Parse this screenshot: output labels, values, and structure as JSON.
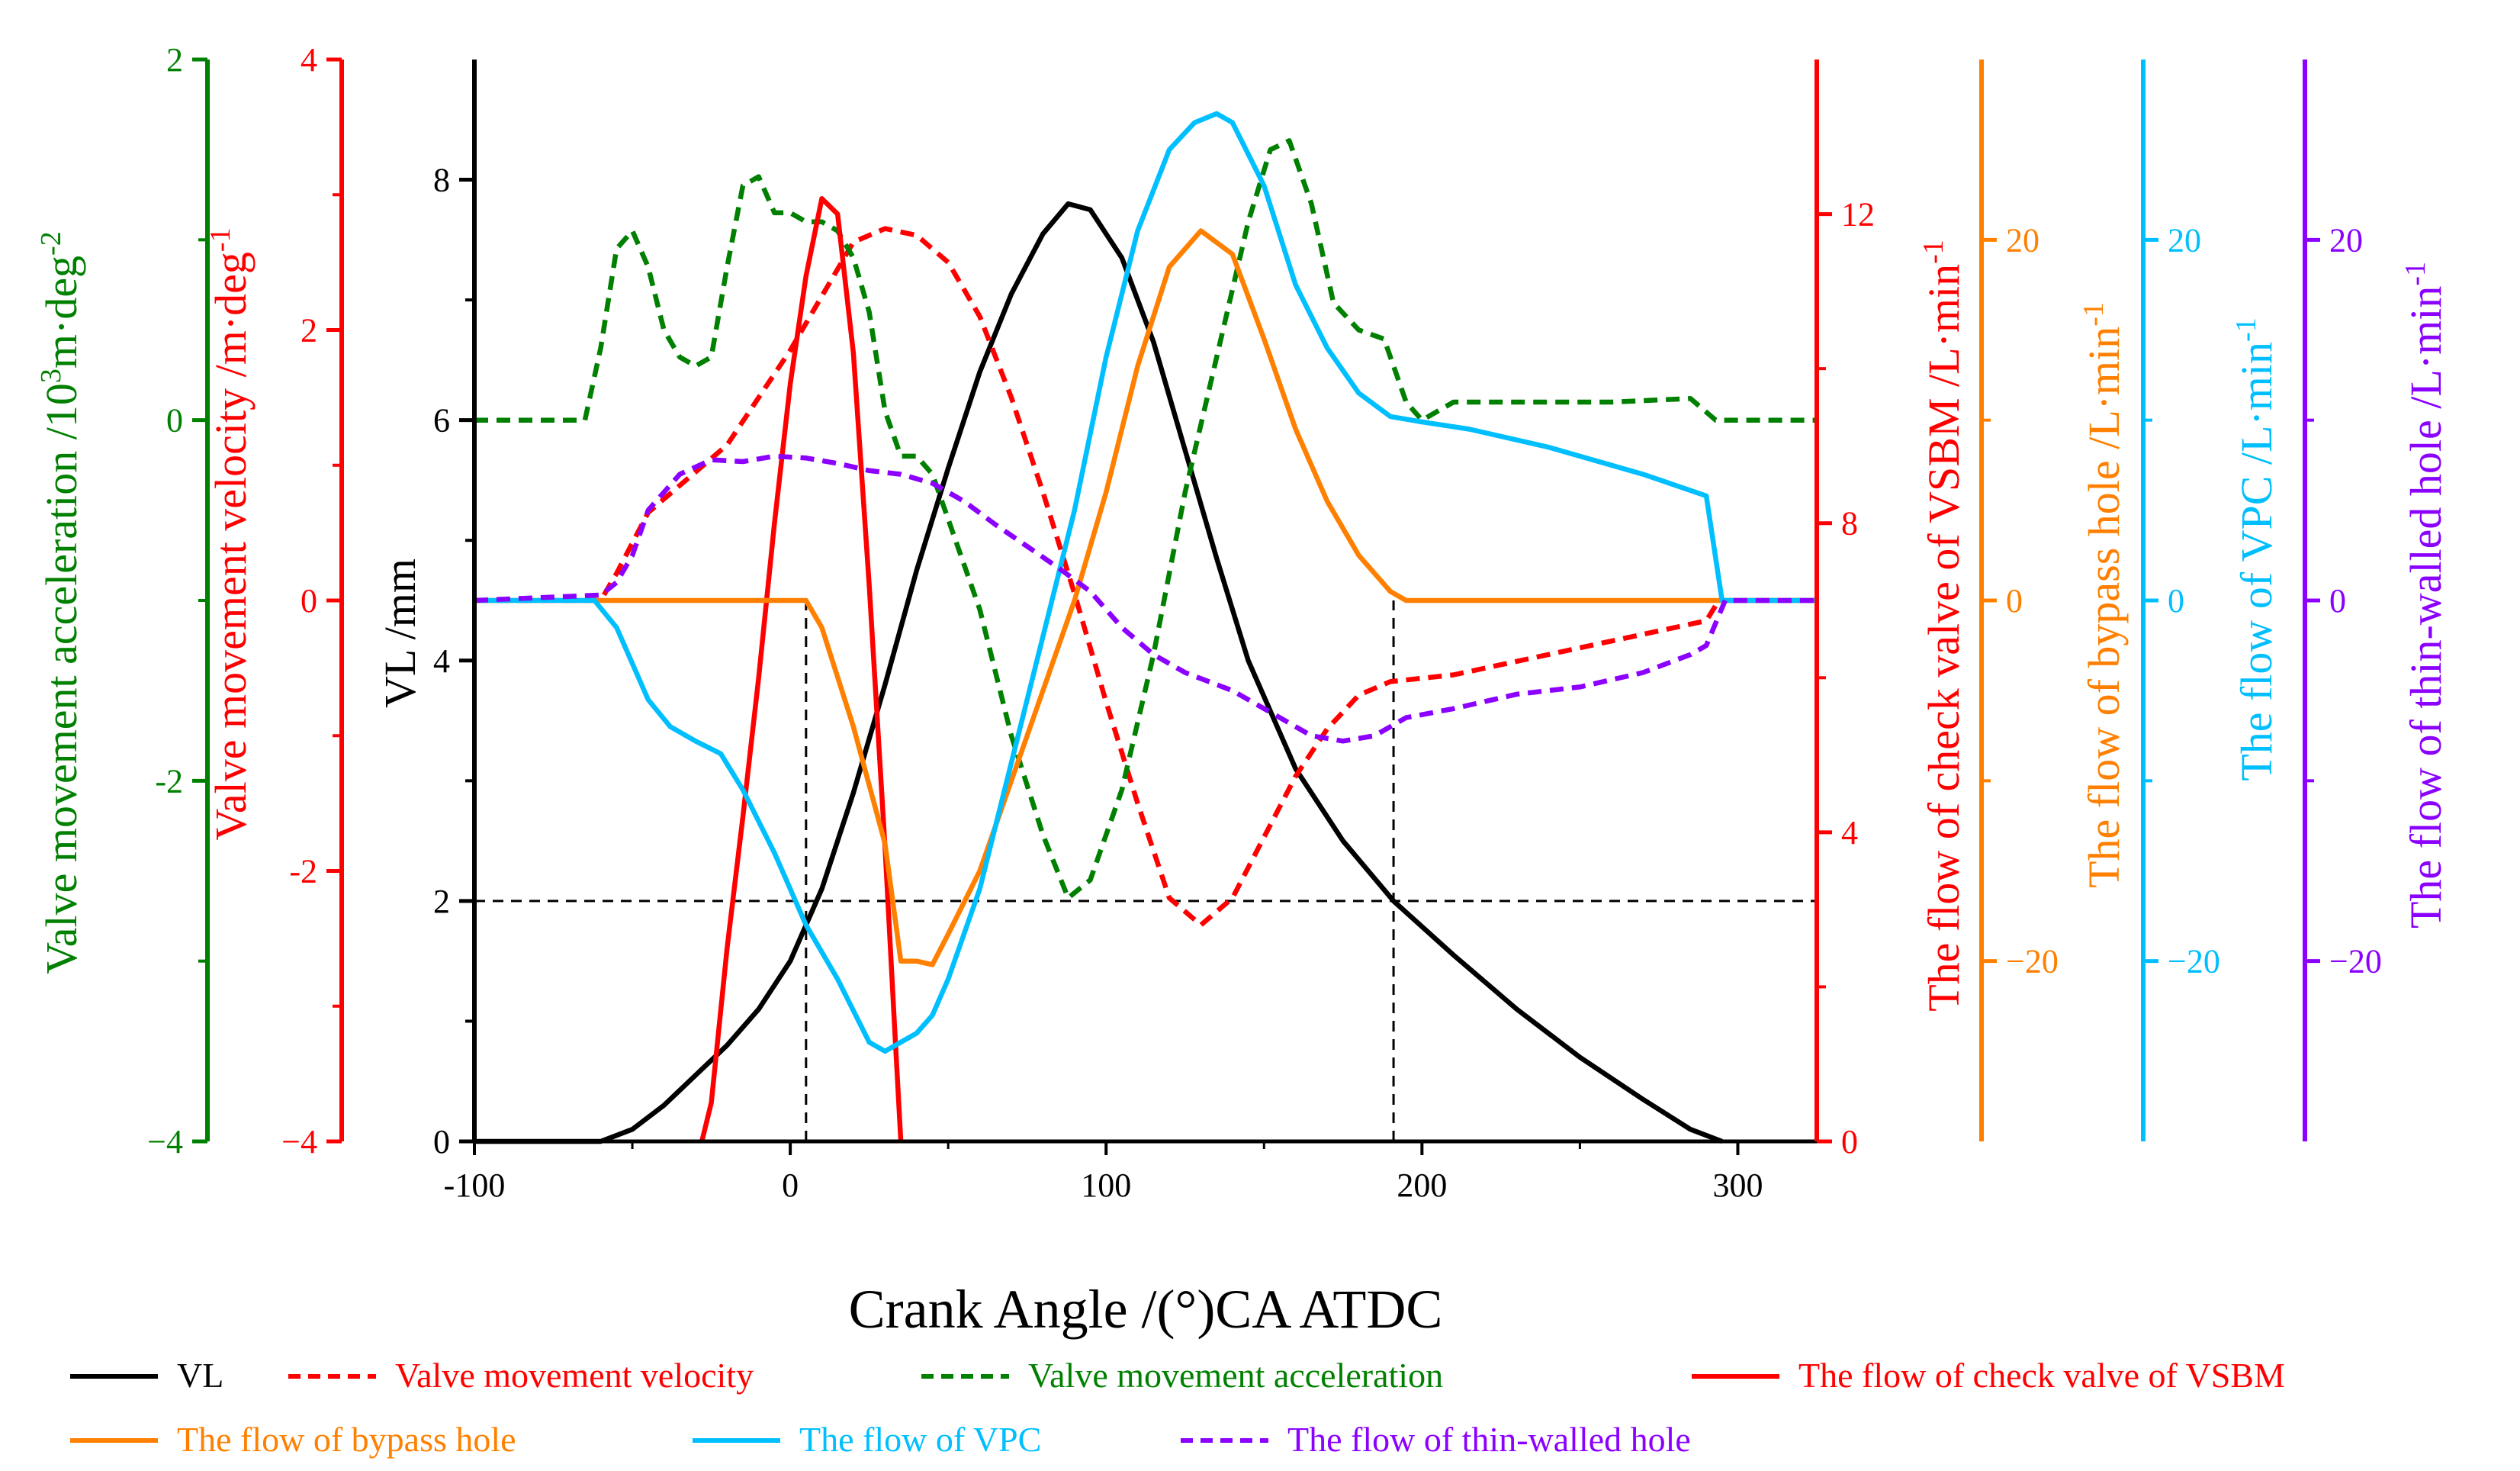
{
  "chart_data": {
    "type": "line",
    "xlabel": "Crank Angle /(°)CA ATDC",
    "xlim": [
      -100,
      325
    ],
    "x_ticks": [
      "-100",
      "0",
      "100",
      "200",
      "300"
    ],
    "grid": false,
    "legend_position": "bottom",
    "axes": [
      {
        "id": "acc",
        "label": "Valve movement acceleration /10³m·deg⁻²",
        "label_parts": [
          "Valve movement acceleration /10",
          "3",
          "m·deg",
          "-2"
        ],
        "color": "#008000",
        "ylim": [
          -4,
          2
        ],
        "ticks": [
          "2",
          "0",
          "-2",
          "−4"
        ]
      },
      {
        "id": "vel",
        "label": "Valve movement velocity /m·deg⁻¹",
        "label_parts": [
          "Valve movement velocity /m·deg",
          "-1"
        ],
        "color": "#ff0000",
        "ylim": [
          -4,
          4
        ],
        "ticks": [
          "4",
          "2",
          "0",
          "-2",
          "−4"
        ]
      },
      {
        "id": "vl",
        "label": "VL /mm",
        "label_parts": [
          "VL /mm"
        ],
        "color": "#000000",
        "ylim": [
          0,
          9
        ],
        "ticks": [
          "0",
          "2",
          "4",
          "6",
          "8"
        ]
      },
      {
        "id": "check",
        "label": "The flow of check valve of VSBM /L·min⁻¹",
        "label_parts": [
          "The flow of check valve of VSBM /L·min",
          "-1"
        ],
        "color": "#ff0000",
        "ylim": [
          0,
          14
        ],
        "ticks": [
          "0",
          "4",
          "8",
          "12"
        ]
      },
      {
        "id": "bypass",
        "label": "The flow of bypass hole /L·min⁻¹",
        "label_parts": [
          "The flow of bypass hole /L·min",
          "-1"
        ],
        "color": "#ff8000",
        "ylim": [
          -30,
          30
        ],
        "ticks": [
          "−20",
          "0",
          "20"
        ]
      },
      {
        "id": "vpc",
        "label": "The flow of VPC /L·min⁻¹",
        "label_parts": [
          "The flow of VPC /L·min",
          "-1"
        ],
        "color": "#00bfff",
        "ylim": [
          -30,
          30
        ],
        "ticks": [
          "−20",
          "0",
          "20"
        ]
      },
      {
        "id": "thin",
        "label": "The flow of thin-walled hole /L·min⁻¹",
        "label_parts": [
          "The flow of thin-walled hole /L·min",
          "-1"
        ],
        "color": "#8b00ff",
        "ylim": [
          -30,
          30
        ],
        "ticks": [
          "−20",
          "0",
          "20"
        ]
      }
    ],
    "reference_lines": [
      {
        "orientation": "horizontal",
        "axis": "vl",
        "value": 2,
        "from_x": -100,
        "to_x": 325
      },
      {
        "orientation": "vertical",
        "x": 5,
        "from_vl": 0,
        "to_vl": 4.5
      },
      {
        "orientation": "vertical",
        "x": 191,
        "from_vl": 0,
        "to_vl": 4.5
      }
    ],
    "series": [
      {
        "name": "VL",
        "axis": "vl",
        "color": "#000000",
        "dash": "solid",
        "points": [
          [
            -100,
            0
          ],
          [
            -60,
            0
          ],
          [
            -50,
            0.1
          ],
          [
            -40,
            0.3
          ],
          [
            -30,
            0.55
          ],
          [
            -20,
            0.8
          ],
          [
            -10,
            1.1
          ],
          [
            0,
            1.5
          ],
          [
            10,
            2.1
          ],
          [
            20,
            2.9
          ],
          [
            30,
            3.8
          ],
          [
            40,
            4.75
          ],
          [
            50,
            5.6
          ],
          [
            60,
            6.4
          ],
          [
            70,
            7.05
          ],
          [
            80,
            7.55
          ],
          [
            88,
            7.8
          ],
          [
            95,
            7.75
          ],
          [
            105,
            7.35
          ],
          [
            115,
            6.65
          ],
          [
            125,
            5.75
          ],
          [
            135,
            4.85
          ],
          [
            145,
            4.0
          ],
          [
            160,
            3.1
          ],
          [
            175,
            2.5
          ],
          [
            191,
            2.0
          ],
          [
            210,
            1.55
          ],
          [
            230,
            1.1
          ],
          [
            250,
            0.7
          ],
          [
            270,
            0.35
          ],
          [
            285,
            0.1
          ],
          [
            295,
            0
          ]
        ]
      },
      {
        "name": "Valve movement velocity",
        "axis": "vel",
        "color": "#ff0000",
        "dash": "dashed",
        "points": [
          [
            -100,
            0
          ],
          [
            -60,
            0
          ],
          [
            -55,
            0.2
          ],
          [
            -45,
            0.65
          ],
          [
            -30,
            0.95
          ],
          [
            -20,
            1.15
          ],
          [
            -10,
            1.5
          ],
          [
            0,
            1.85
          ],
          [
            10,
            2.25
          ],
          [
            20,
            2.65
          ],
          [
            30,
            2.75
          ],
          [
            40,
            2.7
          ],
          [
            50,
            2.5
          ],
          [
            60,
            2.1
          ],
          [
            70,
            1.5
          ],
          [
            80,
            0.8
          ],
          [
            90,
            0.05
          ],
          [
            100,
            -0.75
          ],
          [
            110,
            -1.5
          ],
          [
            120,
            -2.2
          ],
          [
            130,
            -2.4
          ],
          [
            140,
            -2.2
          ],
          [
            150,
            -1.75
          ],
          [
            160,
            -1.3
          ],
          [
            170,
            -0.95
          ],
          [
            180,
            -0.7
          ],
          [
            190,
            -0.6
          ],
          [
            210,
            -0.55
          ],
          [
            230,
            -0.45
          ],
          [
            260,
            -0.3
          ],
          [
            290,
            -0.15
          ],
          [
            294,
            0
          ],
          [
            325,
            0
          ]
        ]
      },
      {
        "name": "Valve movement acceleration",
        "axis": "acc",
        "color": "#008000",
        "dash": "dashed",
        "points": [
          [
            -100,
            0
          ],
          [
            -65,
            0
          ],
          [
            -60,
            0.4
          ],
          [
            -55,
            0.95
          ],
          [
            -50,
            1.05
          ],
          [
            -45,
            0.85
          ],
          [
            -40,
            0.5
          ],
          [
            -35,
            0.35
          ],
          [
            -30,
            0.3
          ],
          [
            -25,
            0.35
          ],
          [
            -20,
            0.85
          ],
          [
            -15,
            1.3
          ],
          [
            -10,
            1.35
          ],
          [
            -5,
            1.15
          ],
          [
            0,
            1.15
          ],
          [
            5,
            1.1
          ],
          [
            10,
            1.1
          ],
          [
            15,
            1.05
          ],
          [
            20,
            0.9
          ],
          [
            25,
            0.6
          ],
          [
            30,
            0.05
          ],
          [
            35,
            -0.2
          ],
          [
            40,
            -0.2
          ],
          [
            45,
            -0.3
          ],
          [
            50,
            -0.55
          ],
          [
            60,
            -1.05
          ],
          [
            70,
            -1.75
          ],
          [
            80,
            -2.3
          ],
          [
            88,
            -2.65
          ],
          [
            95,
            -2.55
          ],
          [
            105,
            -2.05
          ],
          [
            115,
            -1.3
          ],
          [
            125,
            -0.4
          ],
          [
            135,
            0.35
          ],
          [
            145,
            1.1
          ],
          [
            152,
            1.5
          ],
          [
            158,
            1.55
          ],
          [
            165,
            1.2
          ],
          [
            172,
            0.65
          ],
          [
            180,
            0.5
          ],
          [
            188,
            0.45
          ],
          [
            195,
            0.1
          ],
          [
            200,
            0
          ],
          [
            210,
            0.1
          ],
          [
            230,
            0.1
          ],
          [
            260,
            0.1
          ],
          [
            285,
            0.12
          ],
          [
            293,
            0
          ],
          [
            325,
            0
          ]
        ]
      },
      {
        "name": "The flow of check valve of VSBM",
        "axis": "check",
        "color": "#ff0000",
        "dash": "solid",
        "points": [
          [
            -28,
            0
          ],
          [
            -25,
            0.5
          ],
          [
            -20,
            2.5
          ],
          [
            -15,
            4.2
          ],
          [
            -10,
            6.0
          ],
          [
            -5,
            8.0
          ],
          [
            0,
            9.8
          ],
          [
            5,
            11.2
          ],
          [
            10,
            12.2
          ],
          [
            15,
            12.0
          ],
          [
            20,
            10.2
          ],
          [
            25,
            7.2
          ],
          [
            30,
            3.8
          ],
          [
            33,
            1.5
          ],
          [
            35,
            0
          ]
        ]
      },
      {
        "name": "The flow of bypass hole",
        "axis": "bypass",
        "color": "#ff8000",
        "dash": "solid",
        "points": [
          [
            -100,
            0
          ],
          [
            5,
            0
          ],
          [
            10,
            -1.5
          ],
          [
            20,
            -7.0
          ],
          [
            30,
            -13.5
          ],
          [
            35,
            -20.0
          ],
          [
            40,
            -20.0
          ],
          [
            45,
            -20.2
          ],
          [
            50,
            -18.5
          ],
          [
            60,
            -15.0
          ],
          [
            70,
            -10.0
          ],
          [
            80,
            -5.0
          ],
          [
            90,
            0
          ],
          [
            100,
            6.0
          ],
          [
            110,
            13.0
          ],
          [
            120,
            18.5
          ],
          [
            130,
            20.5
          ],
          [
            140,
            19.2
          ],
          [
            150,
            14.5
          ],
          [
            160,
            9.5
          ],
          [
            170,
            5.5
          ],
          [
            180,
            2.5
          ],
          [
            190,
            0.5
          ],
          [
            195,
            0
          ],
          [
            325,
            0
          ]
        ]
      },
      {
        "name": "The flow of VPC",
        "axis": "vpc",
        "color": "#00bfff",
        "dash": "solid",
        "points": [
          [
            -100,
            0
          ],
          [
            -62,
            0
          ],
          [
            -55,
            -1.5
          ],
          [
            -50,
            -3.5
          ],
          [
            -45,
            -5.5
          ],
          [
            -38,
            -7.0
          ],
          [
            -30,
            -7.8
          ],
          [
            -22,
            -8.5
          ],
          [
            -15,
            -10.5
          ],
          [
            -5,
            -14.0
          ],
          [
            5,
            -18.0
          ],
          [
            15,
            -21.0
          ],
          [
            25,
            -24.5
          ],
          [
            30,
            -25.0
          ],
          [
            35,
            -24.5
          ],
          [
            40,
            -24.0
          ],
          [
            45,
            -23.0
          ],
          [
            50,
            -21.0
          ],
          [
            60,
            -16.0
          ],
          [
            70,
            -9.0
          ],
          [
            80,
            -2.0
          ],
          [
            90,
            5.0
          ],
          [
            100,
            13.5
          ],
          [
            110,
            20.5
          ],
          [
            120,
            25.0
          ],
          [
            128,
            26.5
          ],
          [
            135,
            27.0
          ],
          [
            140,
            26.5
          ],
          [
            150,
            23.0
          ],
          [
            160,
            17.5
          ],
          [
            170,
            14.0
          ],
          [
            180,
            11.5
          ],
          [
            190,
            10.2
          ],
          [
            200,
            9.9
          ],
          [
            215,
            9.5
          ],
          [
            240,
            8.5
          ],
          [
            270,
            7.0
          ],
          [
            290,
            5.8
          ],
          [
            295,
            0
          ],
          [
            325,
            0
          ]
        ]
      },
      {
        "name": "The flow of thin-walled hole",
        "axis": "thin",
        "color": "#8b00ff",
        "dash": "dashed",
        "points": [
          [
            -100,
            0
          ],
          [
            -60,
            0.3
          ],
          [
            -55,
            1.0
          ],
          [
            -50,
            2.5
          ],
          [
            -45,
            5.0
          ],
          [
            -35,
            7.0
          ],
          [
            -25,
            7.8
          ],
          [
            -15,
            7.7
          ],
          [
            -5,
            8.0
          ],
          [
            5,
            7.9
          ],
          [
            15,
            7.6
          ],
          [
            25,
            7.2
          ],
          [
            35,
            7.0
          ],
          [
            45,
            6.5
          ],
          [
            55,
            5.5
          ],
          [
            65,
            4.2
          ],
          [
            75,
            3.0
          ],
          [
            85,
            1.8
          ],
          [
            95,
            0.5
          ],
          [
            105,
            -1.5
          ],
          [
            115,
            -3.0
          ],
          [
            125,
            -4.0
          ],
          [
            140,
            -5.0
          ],
          [
            155,
            -6.5
          ],
          [
            165,
            -7.5
          ],
          [
            175,
            -7.8
          ],
          [
            185,
            -7.5
          ],
          [
            195,
            -6.5
          ],
          [
            210,
            -6.0
          ],
          [
            230,
            -5.2
          ],
          [
            250,
            -4.8
          ],
          [
            270,
            -4.0
          ],
          [
            285,
            -3.0
          ],
          [
            290,
            -2.5
          ],
          [
            296,
            0
          ],
          [
            325,
            0
          ]
        ]
      }
    ],
    "legend": [
      {
        "label": "VL",
        "color": "#000000",
        "dash": "solid",
        "text_color": "#000000"
      },
      {
        "label": "Valve movement velocity",
        "color": "#ff0000",
        "dash": "dashed",
        "text_color": "#ff0000"
      },
      {
        "label": "Valve movement acceleration",
        "color": "#008000",
        "dash": "dashed",
        "text_color": "#008000"
      },
      {
        "label": "The flow of check valve of VSBM",
        "color": "#ff0000",
        "dash": "solid",
        "text_color": "#ff0000"
      },
      {
        "label": "The flow of bypass hole",
        "color": "#ff8000",
        "dash": "solid",
        "text_color": "#ff8000"
      },
      {
        "label": "The flow of VPC",
        "color": "#00bfff",
        "dash": "solid",
        "text_color": "#00bfff"
      },
      {
        "label": "The flow of thin-walled hole",
        "color": "#8b00ff",
        "dash": "dashed",
        "text_color": "#8b00ff"
      }
    ]
  }
}
